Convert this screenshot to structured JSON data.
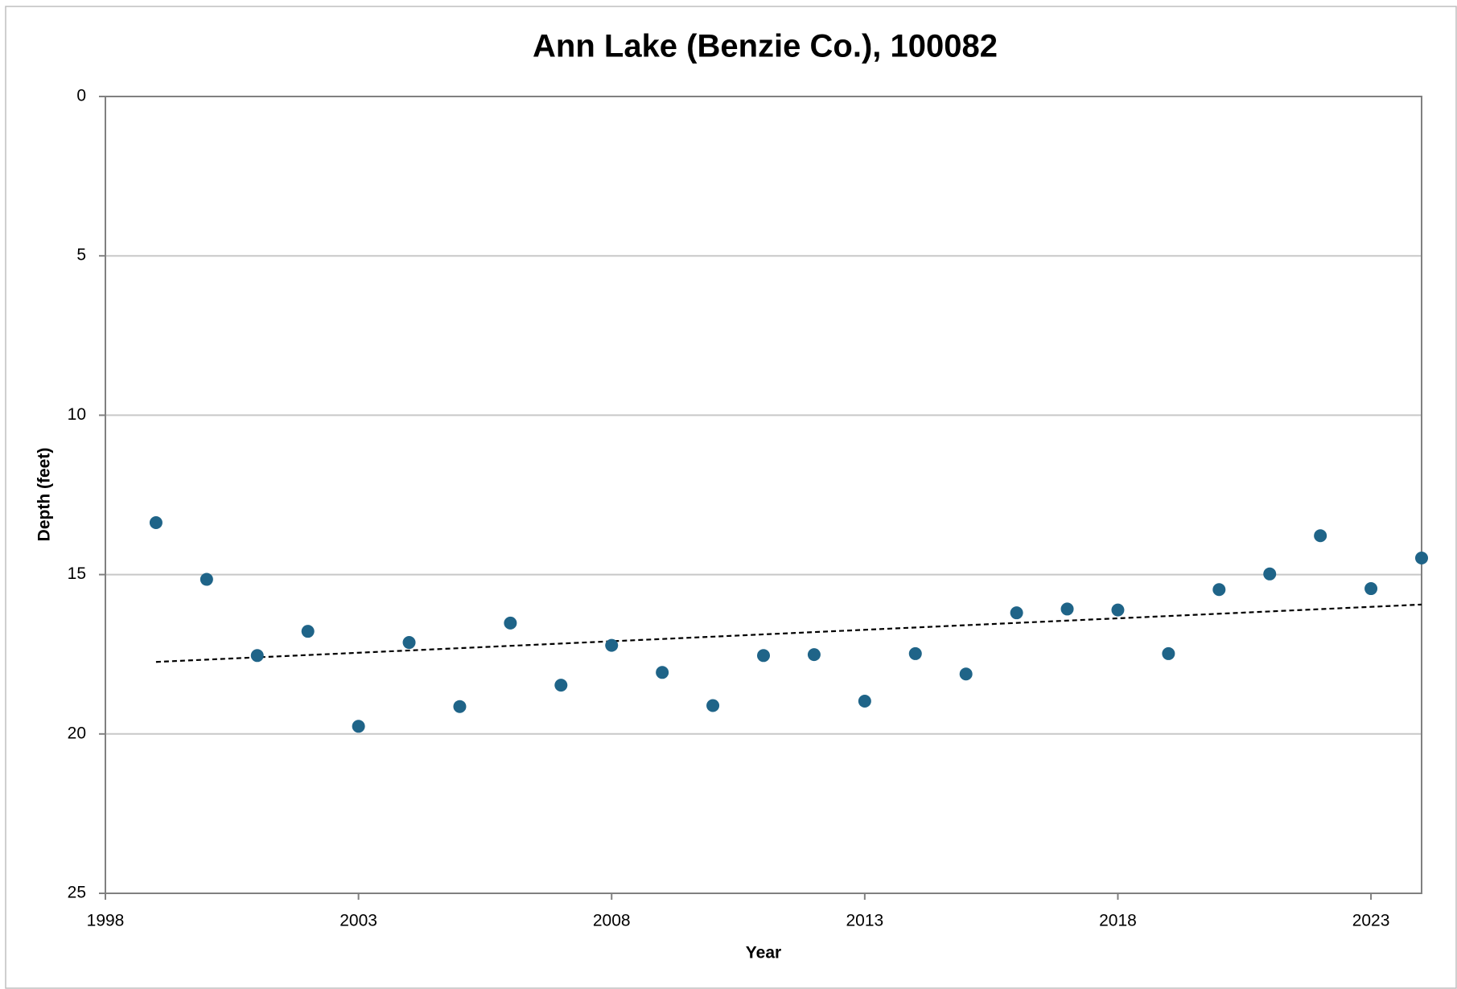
{
  "chart_data": {
    "type": "scatter",
    "title": "Ann Lake (Benzie Co.), 100082",
    "x_label": "Year",
    "y_label": "Depth (feet)",
    "x": [
      1999,
      2000,
      2001,
      2002,
      2003,
      2004,
      2005,
      2006,
      2007,
      2008,
      2009,
      2010,
      2011,
      2012,
      2013,
      2014,
      2015,
      2016,
      2017,
      2018,
      2019,
      2020,
      2021,
      2022,
      2023,
      2024
    ],
    "series": [
      {
        "name": "Depth",
        "color": "#1f6488",
        "values": [
          13.37,
          15.15,
          17.54,
          16.78,
          19.76,
          17.13,
          19.14,
          16.52,
          18.47,
          17.22,
          18.07,
          19.11,
          17.54,
          17.51,
          18.97,
          17.48,
          18.12,
          16.2,
          16.08,
          16.11,
          17.48,
          15.47,
          14.98,
          13.78,
          15.44,
          14.48
        ]
      }
    ],
    "trendline": {
      "x": [
        1999,
        2024
      ],
      "values": [
        17.74,
        15.94
      ],
      "color": "#000000"
    },
    "xlim": [
      1998,
      2024
    ],
    "xticks": [
      1998,
      2003,
      2008,
      2013,
      2018,
      2023
    ],
    "ylim": [
      0,
      25
    ],
    "yticks": [
      0,
      5,
      10,
      15,
      20,
      25
    ],
    "y_inverted": true,
    "grid": true
  }
}
